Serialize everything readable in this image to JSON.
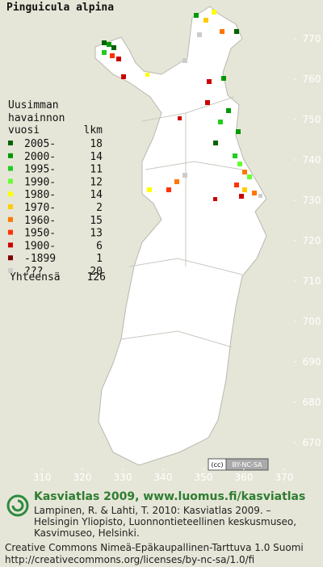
{
  "title": "Pinguicula alpina",
  "legend": {
    "heading": [
      "Uusimman",
      "havainnon"
    ],
    "col_year": "vuosi",
    "col_count": "lkm",
    "rows": [
      {
        "label": "2005-",
        "count": 18,
        "color": "#006400"
      },
      {
        "label": "2000-",
        "count": 14,
        "color": "#009900"
      },
      {
        "label": "1995-",
        "count": 11,
        "color": "#22cc22"
      },
      {
        "label": "1990-",
        "count": 12,
        "color": "#66ff33"
      },
      {
        "label": "1980-",
        "count": 14,
        "color": "#ffff00"
      },
      {
        "label": "1970-",
        "count": 2,
        "color": "#ffcc00"
      },
      {
        "label": "1960-",
        "count": 15,
        "color": "#ff7700"
      },
      {
        "label": "1950-",
        "count": 13,
        "color": "#ff3300"
      },
      {
        "label": "1900-",
        "count": 6,
        "color": "#cc0000"
      },
      {
        "label": "-1899",
        "count": 1,
        "color": "#800000"
      },
      {
        "label": "???",
        "count": 20,
        "color": "#cccccc"
      }
    ],
    "total_label": "Yhteensä",
    "total": 126
  },
  "y_axis": {
    "ticks": [
      770,
      760,
      750,
      740,
      730,
      720,
      710,
      700,
      690,
      680,
      670
    ]
  },
  "x_axis": {
    "ticks": [
      310,
      320,
      330,
      340,
      350,
      360,
      370
    ]
  },
  "badge": "BY-NC-SA",
  "footer": {
    "site": "Kasviatlas 2009, www.luomus.fi/kasviatlas",
    "citation": [
      "Lampinen, R. & Lahti, T. 2010: Kasviatlas 2009. –",
      "Helsingin Yliopisto, Luonnontieteellinen keskusmuseo,",
      "Kasvimuseo, Helsinki."
    ],
    "license": [
      "Creative Commons Nimeä-Epäkaupallinen-Tarttuva 1.0 Suomi",
      "http://creativecommons.org/licenses/by-nc-sa/1.0/fi"
    ]
  }
}
